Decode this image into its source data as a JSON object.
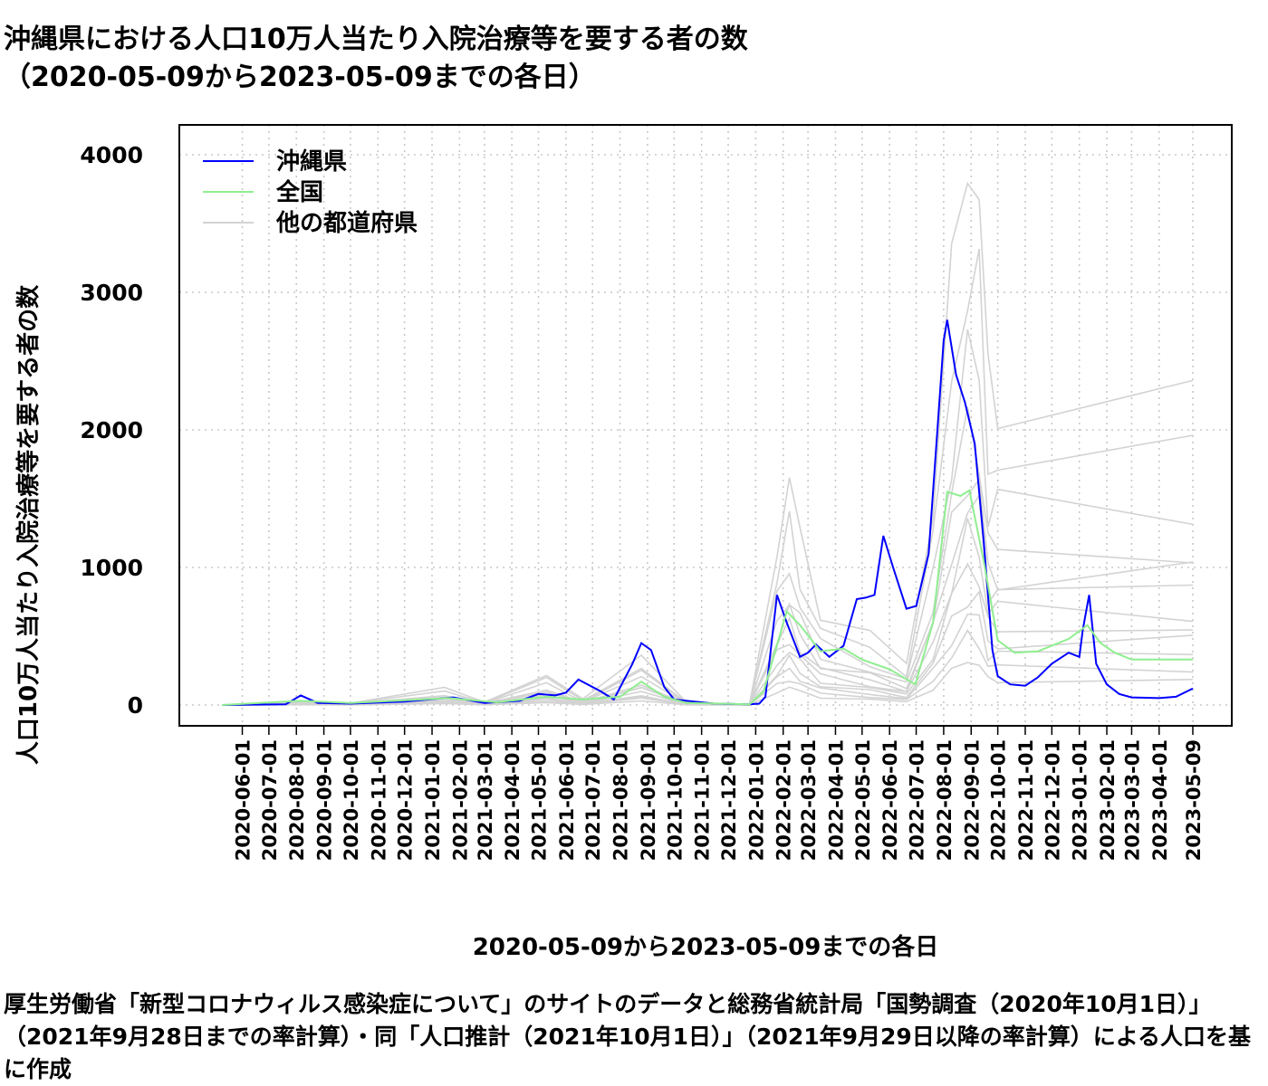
{
  "title_line1": "沖縄県における人口10万人当たり入院治療等を要する者の数",
  "title_line2": "（2020-05-09から2023-05-09までの各日）",
  "caption": "厚生労働省「新型コロナウィルス感染症について」のサイトのデータと総務省統計局「国勢調査（2020年10月1日）」（2021年9月28日までの率計算）・同「人口推計（2021年10月1日）」（2021年9月29日以降の率計算）による人口を基に作成",
  "colors": {
    "okinawa": "#0000ff",
    "national": "#90ee90",
    "others": "#d3d3d3"
  },
  "chart_data": {
    "type": "line",
    "title": "沖縄県における人口10万人当たり入院治療等を要する者の数（2020-05-09から2023-05-09までの各日）",
    "xlabel": "2020-05-09から2023-05-09までの各日",
    "ylabel": "人口10万人当たり入院治療等を要する者の数",
    "xlim": [
      "2020-05-09",
      "2023-05-09"
    ],
    "ylim": [
      0,
      4000
    ],
    "yticks": [
      0,
      1000,
      2000,
      3000,
      4000
    ],
    "xticks": [
      "2020-06-01",
      "2020-07-01",
      "2020-08-01",
      "2020-09-01",
      "2020-10-01",
      "2020-11-01",
      "2020-12-01",
      "2021-01-01",
      "2021-02-01",
      "2021-03-01",
      "2021-04-01",
      "2021-05-01",
      "2021-06-01",
      "2021-07-01",
      "2021-08-01",
      "2021-09-01",
      "2021-10-01",
      "2021-11-01",
      "2021-12-01",
      "2022-01-01",
      "2022-02-01",
      "2022-03-01",
      "2022-04-01",
      "2022-05-01",
      "2022-06-01",
      "2022-07-01",
      "2022-08-01",
      "2022-09-01",
      "2022-10-01",
      "2022-11-01",
      "2022-12-01",
      "2023-01-01",
      "2023-02-01",
      "2023-03-01",
      "2023-04-01",
      "2023-05-09"
    ],
    "grid": true,
    "legend_position": "top-left",
    "series": [
      {
        "name": "沖縄県",
        "color": "#0000ff",
        "x": [
          "2020-05-09",
          "2020-07-20",
          "2020-08-06",
          "2020-08-25",
          "2020-10-01",
          "2020-12-01",
          "2021-01-25",
          "2021-03-01",
          "2021-04-10",
          "2021-05-01",
          "2021-05-20",
          "2021-06-01",
          "2021-06-15",
          "2021-07-10",
          "2021-07-25",
          "2021-08-15",
          "2021-08-25",
          "2021-09-05",
          "2021-09-20",
          "2021-10-01",
          "2021-11-15",
          "2021-12-25",
          "2022-01-05",
          "2022-01-12",
          "2022-01-25",
          "2022-02-05",
          "2022-02-20",
          "2022-03-01",
          "2022-03-10",
          "2022-03-25",
          "2022-04-10",
          "2022-04-25",
          "2022-05-05",
          "2022-05-15",
          "2022-05-25",
          "2022-06-05",
          "2022-06-20",
          "2022-07-01",
          "2022-07-15",
          "2022-07-25",
          "2022-08-01",
          "2022-08-05",
          "2022-08-15",
          "2022-08-25",
          "2022-09-05",
          "2022-09-15",
          "2022-09-25",
          "2022-10-01",
          "2022-10-15",
          "2022-11-01",
          "2022-11-15",
          "2022-12-01",
          "2022-12-20",
          "2023-01-01",
          "2023-01-05",
          "2023-01-12",
          "2023-01-20",
          "2023-02-01",
          "2023-02-15",
          "2023-03-01",
          "2023-04-01",
          "2023-04-20",
          "2023-05-09"
        ],
        "y": [
          0,
          5,
          70,
          15,
          10,
          25,
          55,
          15,
          30,
          80,
          70,
          90,
          185,
          100,
          40,
          300,
          450,
          400,
          130,
          40,
          10,
          5,
          10,
          60,
          800,
          600,
          350,
          380,
          440,
          350,
          430,
          770,
          780,
          800,
          1230,
          1000,
          700,
          720,
          1100,
          2000,
          2650,
          2800,
          2400,
          2200,
          1900,
          1200,
          400,
          210,
          150,
          140,
          200,
          300,
          380,
          350,
          550,
          800,
          300,
          150,
          80,
          55,
          50,
          60,
          120
        ]
      },
      {
        "name": "全国",
        "color": "#90ee90",
        "x": [
          "2020-05-09",
          "2020-08-05",
          "2020-10-01",
          "2021-01-20",
          "2021-03-15",
          "2021-05-10",
          "2021-06-20",
          "2021-08-01",
          "2021-08-25",
          "2021-09-20",
          "2021-10-15",
          "2021-12-25",
          "2022-01-10",
          "2022-02-05",
          "2022-02-20",
          "2022-03-15",
          "2022-04-10",
          "2022-05-01",
          "2022-06-01",
          "2022-06-30",
          "2022-07-20",
          "2022-08-05",
          "2022-08-20",
          "2022-08-30",
          "2022-09-15",
          "2022-10-01",
          "2022-10-20",
          "2022-11-15",
          "2022-12-20",
          "2023-01-10",
          "2023-01-25",
          "2023-02-10",
          "2023-03-01",
          "2023-05-09"
        ],
        "y": [
          0,
          30,
          15,
          50,
          20,
          60,
          40,
          60,
          170,
          60,
          15,
          5,
          100,
          680,
          580,
          390,
          410,
          330,
          260,
          150,
          600,
          1550,
          1520,
          1560,
          1050,
          470,
          380,
          390,
          480,
          580,
          450,
          380,
          330,
          330
        ]
      }
    ],
    "legend": [
      "沖縄県",
      "全国",
      "他の都道府県"
    ]
  }
}
